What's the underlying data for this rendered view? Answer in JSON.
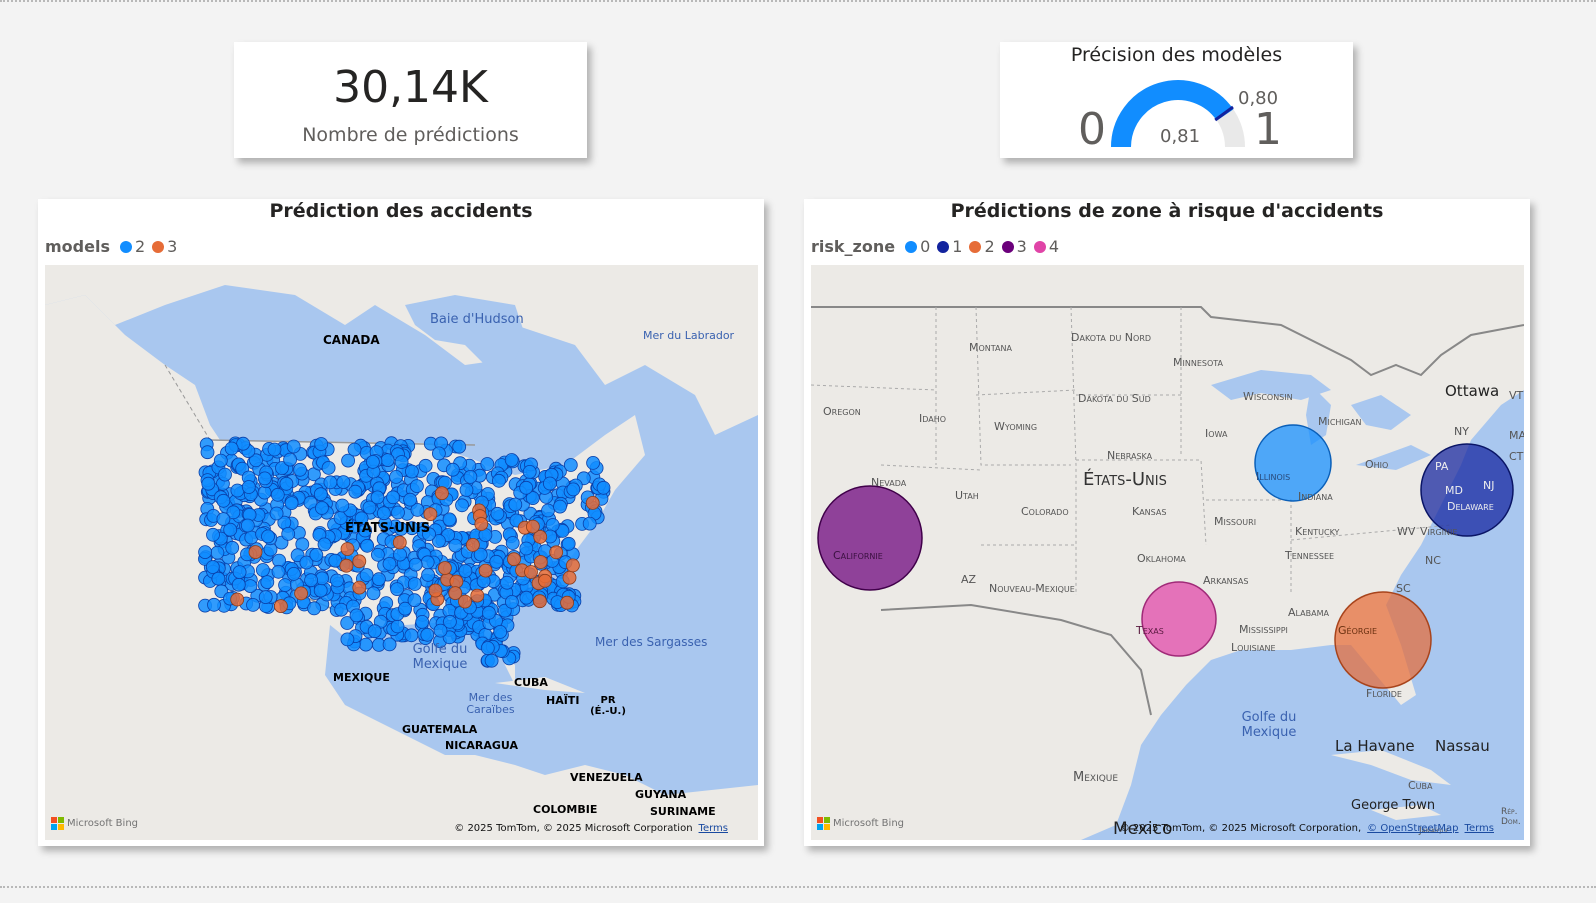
{
  "kpi": {
    "value": "30,14K",
    "label": "Nombre de prédictions"
  },
  "gauge": {
    "title": "Précision des modèles",
    "min": "0",
    "max": "1",
    "value": "0,81",
    "target": "0,80",
    "value_fraction": 0.81,
    "target_fraction": 0.8
  },
  "map1": {
    "title": "Prédiction des accidents",
    "legend_title": "models",
    "legend": [
      {
        "label": "2",
        "color": "#118dff"
      },
      {
        "label": "3",
        "color": "#e66c37"
      }
    ],
    "labels": {
      "canada": "CANADA",
      "hudson": "Baie d'Hudson",
      "labrador": "Mer du Labrador",
      "usa": "ÉTATS-UNIS",
      "gulf": "Golfe du Mexique",
      "sargasso": "Mer des Sargasses",
      "mexico": "MEXIQUE",
      "cuba": "CUBA",
      "haiti": "HAÏTI",
      "pr": "PR (É.-U.)",
      "caribbean": "Mer des Caraïbes",
      "guatemala": "GUATEMALA",
      "nicaragua": "NICARAGUA",
      "venezuela": "VENEZUELA",
      "guyana": "GUYANA",
      "suriname": "SURINAME",
      "colombia": "COLOMBIE"
    },
    "bing": "Microsoft Bing",
    "copyright": "© 2025 TomTom, © 2025 Microsoft Corporation",
    "terms": "Terms"
  },
  "map2": {
    "title": "Prédictions de zone à risque d'accidents",
    "legend_title": "risk_zone",
    "legend": [
      {
        "label": "0",
        "color": "#118dff"
      },
      {
        "label": "1",
        "color": "#12239e"
      },
      {
        "label": "2",
        "color": "#e66c37"
      },
      {
        "label": "3",
        "color": "#6b007b"
      },
      {
        "label": "4",
        "color": "#e044a7"
      }
    ],
    "labels": {
      "montana": "Montana",
      "dakota_n": "Dakota du Nord",
      "minnesota": "Minnesota",
      "oregon": "Oregon",
      "idaho": "Idaho",
      "wyoming": "Wyoming",
      "dakota_s": "Dakota du Sud",
      "wisconsin": "Wisconsin",
      "michigan": "Michigan",
      "iowa": "Iowa",
      "nebraska": "Nebraska",
      "nevada": "Nevada",
      "utah": "Utah",
      "usa": "États-Unis",
      "illinois": "Illinois",
      "ohio": "Ohio",
      "indiana": "Indiana",
      "colorado": "Colorado",
      "kansas": "Kansas",
      "missouri": "Missouri",
      "kentucky": "Kentucky",
      "california": "Californie",
      "oklahoma": "Oklahoma",
      "tennessee": "Tennessee",
      "az": "AZ",
      "newmex": "Nouveau-Mexique",
      "arkansas": "Arkansas",
      "nc": "NC",
      "sc": "SC",
      "alabama": "Alabama",
      "texas": "Texas",
      "mississippi": "Mississippi",
      "georgia": "Géorgie",
      "louisiana": "Louisiane",
      "florida": "Floride",
      "pa": "PA",
      "md": "MD",
      "nj": "NJ",
      "delaware": "Delaware",
      "wv": "WV",
      "virginia": "Virginie",
      "ny": "NY",
      "ct": "CT",
      "vt": "VT",
      "ma": "MA",
      "ottawa": "Ottawa",
      "gulf": "Golfe du Mexique",
      "mexico": "Mexique",
      "mexico_city": "Mexico",
      "havana": "La Havane",
      "nassau": "Nassau",
      "cuba": "Cuba",
      "georgetown": "George Town",
      "jamaica": "Jamaïque",
      "rep": "Rép. Dom."
    },
    "bing": "Microsoft Bing",
    "copyright": "© 2025 TomTom, © 2025 Microsoft Corporation,",
    "osm": "© OpenStreetMap",
    "terms": "Terms"
  }
}
